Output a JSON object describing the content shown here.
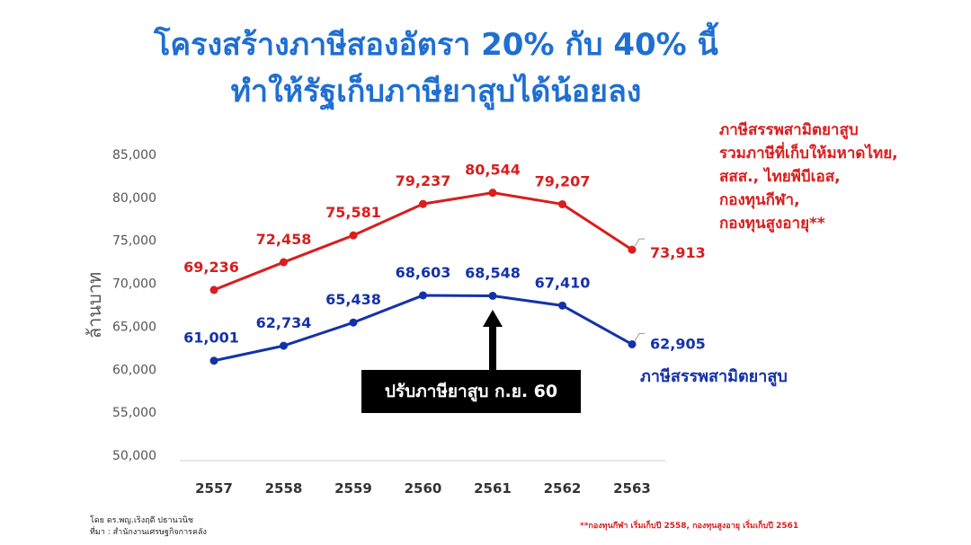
{
  "header": {
    "title_line1": "โครงสร้างภาษีสองอัตรา 20% กับ 40% นี้",
    "title_line2": "ทำให้รัฐเก็บภาษียาสูบได้น้อยลง"
  },
  "annotations": {
    "red_note_lines": [
      "ภาษีสรรพสามิตยาสูบ",
      "รวมภาษีที่เก็บให้มหาดไทย,",
      "สสส., ไทยพีบีเอส,",
      "กองทุนกีฬา,",
      "กองทุนสูงอายุ**"
    ],
    "blue_label": "ภาษีสรรพสามิตยาสูบ",
    "callout": "ปรับภาษียาสูบ ก.ย. 60"
  },
  "footer": {
    "author": "โดย ดร.พญ.เริงฤดี ปธานวนิช",
    "source": "ที่มา : สำนักงานเศรษฐกิจการคลัง",
    "note": "**กองทุนกีฬา เริ่มเก็บปี 2558, กองทุนสูงอายุ เริ่มเก็บปี 2561"
  },
  "chart_data": {
    "type": "line",
    "categories": [
      "2557",
      "2558",
      "2559",
      "2560",
      "2561",
      "2562",
      "2563"
    ],
    "ylabel": "ล้านบาท",
    "ylim": [
      50000,
      85000
    ],
    "yticks": [
      "50,000",
      "55,000",
      "60,000",
      "65,000",
      "70,000",
      "75,000",
      "80,000",
      "85,000"
    ],
    "grid": false,
    "series": [
      {
        "name": "ภาษีสรรพสามิตยาสูบ รวมภาษีที่เก็บให้มหาดไทย, สสส., ไทยพีบีเอส, กองทุนกีฬา, กองทุนสูงอายุ**",
        "color": "#d81e1e",
        "values": [
          69236,
          72458,
          75581,
          79237,
          80544,
          79207,
          73913
        ],
        "labels": [
          "69,236",
          "72,458",
          "75,581",
          "79,237",
          "80,544",
          "79,207",
          "73,913"
        ]
      },
      {
        "name": "ภาษีสรรพสามิตยาสูบ",
        "color": "#1432a8",
        "values": [
          61001,
          62734,
          65438,
          68603,
          68548,
          67410,
          62905
        ],
        "labels": [
          "61,001",
          "62,734",
          "65,438",
          "68,603",
          "68,548",
          "67,410",
          "62,905"
        ]
      }
    ]
  }
}
